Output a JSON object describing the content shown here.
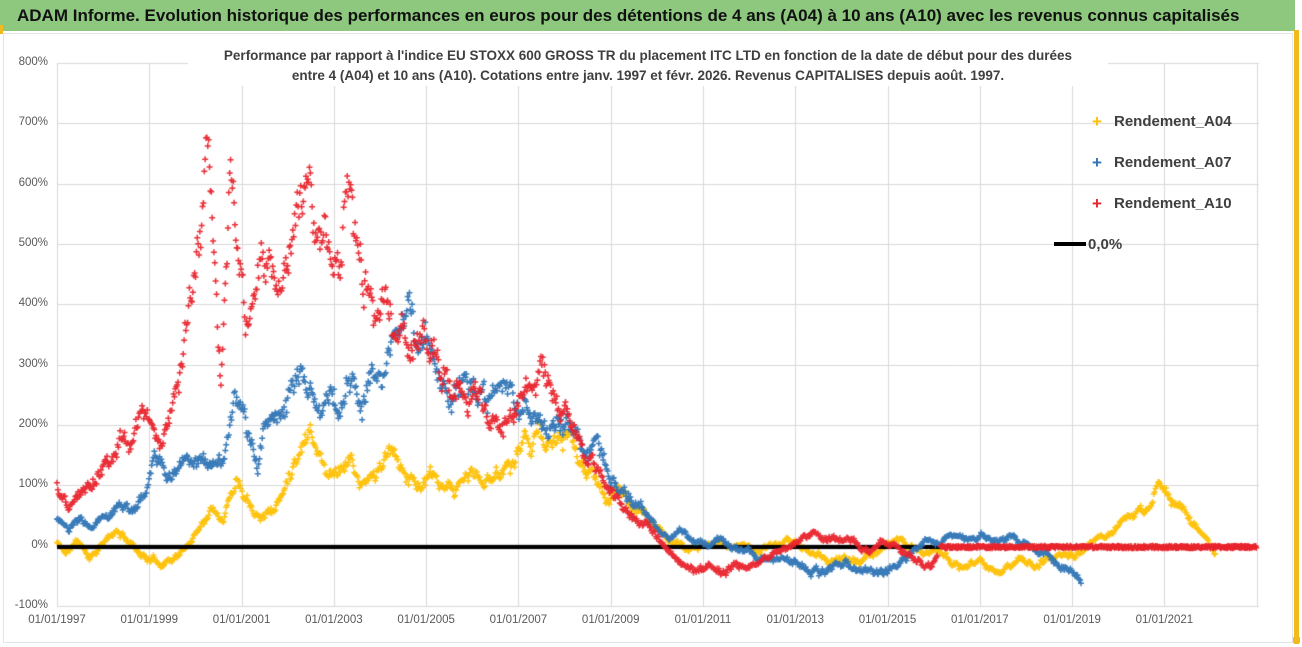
{
  "banner": {
    "title": "ADAM Informe. Evolution historique des performances en euros pour des détentions de 4 ans (A04) à 10 ans (A10) avec les revenus connus capitalisés",
    "bg_color": "#8dc87e",
    "accent_color": "#f2ba1d"
  },
  "chart_data": {
    "type": "scatter",
    "title_line1": "Performance par rapport à l'indice EU STOXX 600 GROSS TR  du placement ITC LTD en fonction de la date de début pour des durées",
    "title_line2": "entre 4 (A04) et 10 ans (A10). Cotations entre janv. 1997 et févr. 2026. Revenus CAPITALISES depuis août. 1997.",
    "grid": true,
    "legend_position": "right",
    "x_axis": {
      "tick_labels": [
        "01/01/1997",
        "01/01/1999",
        "01/01/2001",
        "01/01/2003",
        "01/01/2005",
        "01/01/2007",
        "01/01/2009",
        "01/01/2011",
        "01/01/2013",
        "01/01/2015",
        "01/01/2017",
        "01/01/2019",
        "01/01/2021"
      ],
      "tick_years": [
        1997,
        1999,
        2001,
        2003,
        2005,
        2007,
        2009,
        2011,
        2013,
        2015,
        2017,
        2019,
        2021
      ],
      "range_years": [
        1997,
        2023.05
      ]
    },
    "y_axis": {
      "tick_labels": [
        "800%",
        "700%",
        "600%",
        "500%",
        "400%",
        "300%",
        "200%",
        "100%",
        "0%",
        "-100%"
      ],
      "tick_values": [
        800,
        700,
        600,
        500,
        400,
        300,
        200,
        100,
        0,
        -100
      ],
      "range_pct": [
        -100,
        800
      ],
      "gridline_color": "#d9d9d9"
    },
    "zero_line": {
      "label": "0,0%",
      "value_pct": 0,
      "color": "#000000"
    },
    "series": [
      {
        "name": "Rendement_A04",
        "color": "#fec002",
        "marker": "+",
        "seed": 11,
        "keypoints_year_pct": [
          [
            1997.0,
            5
          ],
          [
            1997.2,
            -12
          ],
          [
            1997.45,
            8
          ],
          [
            1997.7,
            -18
          ],
          [
            1998.0,
            5
          ],
          [
            1998.3,
            22
          ],
          [
            1998.6,
            5
          ],
          [
            1998.9,
            -18
          ],
          [
            1999.2,
            -28
          ],
          [
            1999.5,
            -20
          ],
          [
            1999.8,
            -5
          ],
          [
            2000.1,
            35
          ],
          [
            2000.4,
            70
          ],
          [
            2000.6,
            50
          ],
          [
            2000.9,
            120
          ],
          [
            2001.1,
            90
          ],
          [
            2001.4,
            55
          ],
          [
            2001.7,
            62
          ],
          [
            2001.9,
            85
          ],
          [
            2002.1,
            140
          ],
          [
            2002.35,
            185
          ],
          [
            2002.5,
            205
          ],
          [
            2002.7,
            150
          ],
          [
            2002.9,
            118
          ],
          [
            2003.1,
            135
          ],
          [
            2003.35,
            148
          ],
          [
            2003.6,
            95
          ],
          [
            2003.9,
            118
          ],
          [
            2004.2,
            148
          ],
          [
            2004.5,
            128
          ],
          [
            2004.8,
            100
          ],
          [
            2005.1,
            112
          ],
          [
            2005.4,
            82
          ],
          [
            2005.7,
            95
          ],
          [
            2006.0,
            120
          ],
          [
            2006.3,
            100
          ],
          [
            2006.6,
            128
          ],
          [
            2006.9,
            142
          ],
          [
            2007.15,
            178
          ],
          [
            2007.4,
            195
          ],
          [
            2007.7,
            158
          ],
          [
            2008.0,
            175
          ],
          [
            2008.3,
            140
          ],
          [
            2008.6,
            108
          ],
          [
            2008.9,
            80
          ],
          [
            2009.2,
            92
          ],
          [
            2009.5,
            60
          ],
          [
            2009.8,
            45
          ],
          [
            2010.1,
            20
          ],
          [
            2010.4,
            5
          ],
          [
            2010.7,
            -8
          ],
          [
            2011.0,
            0
          ],
          [
            2011.3,
            10
          ],
          [
            2011.6,
            -6
          ],
          [
            2011.9,
            5
          ],
          [
            2012.2,
            -8
          ],
          [
            2012.5,
            0
          ],
          [
            2012.8,
            10
          ],
          [
            2013.1,
            0
          ],
          [
            2013.4,
            -15
          ],
          [
            2013.7,
            -26
          ],
          [
            2014.0,
            -18
          ],
          [
            2014.3,
            -30
          ],
          [
            2014.6,
            -20
          ],
          [
            2014.9,
            -5
          ],
          [
            2015.2,
            10
          ],
          [
            2015.5,
            0
          ],
          [
            2015.8,
            -10
          ],
          [
            2016.1,
            -6
          ],
          [
            2016.4,
            -26
          ],
          [
            2016.7,
            -40
          ],
          [
            2017.0,
            -34
          ],
          [
            2017.3,
            -42
          ],
          [
            2017.6,
            -34
          ],
          [
            2017.9,
            -24
          ],
          [
            2018.2,
            -30
          ],
          [
            2018.5,
            -20
          ],
          [
            2018.8,
            -12
          ],
          [
            2019.1,
            -18
          ],
          [
            2019.35,
            -4
          ],
          [
            2019.6,
            10
          ],
          [
            2019.9,
            28
          ],
          [
            2020.2,
            48
          ],
          [
            2020.45,
            62
          ],
          [
            2020.6,
            55
          ],
          [
            2020.9,
            103
          ],
          [
            2021.1,
            72
          ],
          [
            2021.3,
            66
          ],
          [
            2021.5,
            50
          ],
          [
            2021.7,
            30
          ],
          [
            2021.9,
            10
          ],
          [
            2022.1,
            -14
          ]
        ]
      },
      {
        "name": "Rendement_A07",
        "color": "#2e74b5",
        "marker": "+",
        "seed": 23,
        "keypoints_year_pct": [
          [
            1997.0,
            50
          ],
          [
            1997.25,
            22
          ],
          [
            1997.5,
            40
          ],
          [
            1997.75,
            30
          ],
          [
            1998.0,
            45
          ],
          [
            1998.3,
            75
          ],
          [
            1998.6,
            55
          ],
          [
            1998.9,
            85
          ],
          [
            1999.15,
            140
          ],
          [
            1999.4,
            110
          ],
          [
            1999.7,
            148
          ],
          [
            2000.0,
            160
          ],
          [
            2000.3,
            130
          ],
          [
            2000.6,
            150
          ],
          [
            2000.9,
            230
          ],
          [
            2001.1,
            180
          ],
          [
            2001.35,
            150
          ],
          [
            2001.6,
            200
          ],
          [
            2001.9,
            230
          ],
          [
            2002.1,
            278
          ],
          [
            2002.3,
            302
          ],
          [
            2002.5,
            250
          ],
          [
            2002.7,
            228
          ],
          [
            2002.9,
            258
          ],
          [
            2003.1,
            238
          ],
          [
            2003.35,
            282
          ],
          [
            2003.6,
            230
          ],
          [
            2003.85,
            258
          ],
          [
            2004.1,
            300
          ],
          [
            2004.35,
            375
          ],
          [
            2004.5,
            405
          ],
          [
            2004.65,
            348
          ],
          [
            2004.9,
            310
          ],
          [
            2005.1,
            328
          ],
          [
            2005.35,
            280
          ],
          [
            2005.6,
            255
          ],
          [
            2005.85,
            288
          ],
          [
            2006.1,
            258
          ],
          [
            2006.4,
            228
          ],
          [
            2006.7,
            248
          ],
          [
            2007.0,
            230
          ],
          [
            2007.2,
            244
          ],
          [
            2007.5,
            208
          ],
          [
            2007.8,
            188
          ],
          [
            2008.1,
            198
          ],
          [
            2008.4,
            160
          ],
          [
            2008.7,
            182
          ],
          [
            2009.0,
            120
          ],
          [
            2009.3,
            90
          ],
          [
            2009.6,
            65
          ],
          [
            2009.9,
            45
          ],
          [
            2010.2,
            20
          ],
          [
            2010.5,
            25
          ],
          [
            2010.8,
            5
          ],
          [
            2011.1,
            0
          ],
          [
            2011.4,
            10
          ],
          [
            2011.7,
            -5
          ],
          [
            2012.0,
            -10
          ],
          [
            2012.3,
            -20
          ],
          [
            2012.6,
            -14
          ],
          [
            2012.9,
            -25
          ],
          [
            2013.2,
            -35
          ],
          [
            2013.5,
            -42
          ],
          [
            2013.8,
            -34
          ],
          [
            2014.1,
            -30
          ],
          [
            2014.4,
            -45
          ],
          [
            2014.7,
            -38
          ],
          [
            2015.0,
            -42
          ],
          [
            2015.3,
            -25
          ],
          [
            2015.6,
            -4
          ],
          [
            2015.9,
            12
          ],
          [
            2016.2,
            8
          ],
          [
            2016.5,
            18
          ],
          [
            2016.8,
            10
          ],
          [
            2017.1,
            18
          ],
          [
            2017.35,
            8
          ],
          [
            2017.6,
            15
          ],
          [
            2017.9,
            4
          ],
          [
            2018.2,
            -6
          ],
          [
            2018.5,
            -20
          ],
          [
            2018.75,
            -30
          ],
          [
            2019.0,
            -40
          ],
          [
            2019.2,
            -50
          ]
        ]
      },
      {
        "name": "Rendement_A10",
        "color": "#e8232c",
        "marker": "+",
        "seed": 37,
        "keypoints_year_pct": [
          [
            1997.0,
            100
          ],
          [
            1997.25,
            65
          ],
          [
            1997.5,
            90
          ],
          [
            1997.75,
            105
          ],
          [
            1998.0,
            145
          ],
          [
            1998.35,
            195
          ],
          [
            1998.6,
            160
          ],
          [
            1998.9,
            225
          ],
          [
            1999.1,
            160
          ],
          [
            1999.35,
            200
          ],
          [
            1999.6,
            270
          ],
          [
            1999.85,
            400
          ],
          [
            2000.1,
            530
          ],
          [
            2000.27,
            615
          ],
          [
            2000.4,
            420
          ],
          [
            2000.55,
            250
          ],
          [
            2000.75,
            575
          ],
          [
            2000.95,
            440
          ],
          [
            2001.15,
            350
          ],
          [
            2001.4,
            430
          ],
          [
            2001.6,
            468
          ],
          [
            2001.8,
            410
          ],
          [
            2002.0,
            430
          ],
          [
            2002.2,
            560
          ],
          [
            2002.37,
            648
          ],
          [
            2002.55,
            540
          ],
          [
            2002.7,
            470
          ],
          [
            2002.9,
            528
          ],
          [
            2003.1,
            478
          ],
          [
            2003.25,
            640
          ],
          [
            2003.45,
            520
          ],
          [
            2003.65,
            430
          ],
          [
            2003.9,
            400
          ],
          [
            2004.15,
            428
          ],
          [
            2004.4,
            378
          ],
          [
            2004.6,
            318
          ],
          [
            2004.85,
            348
          ],
          [
            2005.1,
            328
          ],
          [
            2005.35,
            298
          ],
          [
            2005.6,
            250
          ],
          [
            2005.85,
            278
          ],
          [
            2006.1,
            248
          ],
          [
            2006.35,
            215
          ],
          [
            2006.6,
            185
          ],
          [
            2006.85,
            214
          ],
          [
            2007.1,
            234
          ],
          [
            2007.35,
            268
          ],
          [
            2007.5,
            308
          ],
          [
            2007.65,
            248
          ],
          [
            2007.9,
            205
          ],
          [
            2008.15,
            214
          ],
          [
            2008.4,
            165
          ],
          [
            2008.65,
            134
          ],
          [
            2008.9,
            100
          ],
          [
            2009.15,
            70
          ],
          [
            2009.4,
            55
          ],
          [
            2009.65,
            44
          ],
          [
            2009.9,
            25
          ],
          [
            2010.15,
            0
          ],
          [
            2010.4,
            -20
          ],
          [
            2010.65,
            -35
          ],
          [
            2010.9,
            -45
          ],
          [
            2011.15,
            -38
          ],
          [
            2011.4,
            -48
          ],
          [
            2011.65,
            -35
          ],
          [
            2011.9,
            -28
          ],
          [
            2012.15,
            -22
          ],
          [
            2012.4,
            -12
          ],
          [
            2012.65,
            -8
          ],
          [
            2012.9,
            -2
          ],
          [
            2013.15,
            12
          ],
          [
            2013.4,
            25
          ],
          [
            2013.6,
            18
          ],
          [
            2013.85,
            8
          ],
          [
            2014.1,
            18
          ],
          [
            2014.35,
            8
          ],
          [
            2014.6,
            -8
          ],
          [
            2014.85,
            8
          ],
          [
            2015.1,
            2
          ],
          [
            2015.35,
            -12
          ],
          [
            2015.6,
            -25
          ],
          [
            2015.8,
            -38
          ],
          [
            2015.95,
            -30
          ],
          [
            2016.08,
            -12
          ]
        ],
        "zero_tail": {
          "start_year": 2016.15,
          "end_year": 2023.0,
          "value_pct": 0,
          "seed": 51
        }
      }
    ]
  }
}
